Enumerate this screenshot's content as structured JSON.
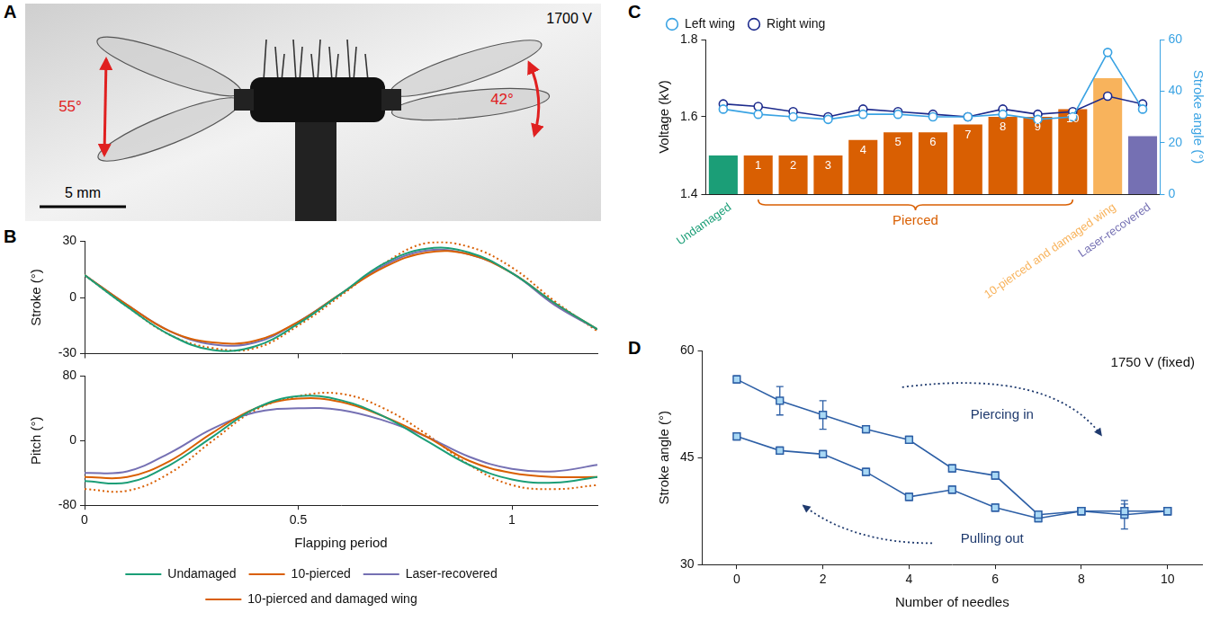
{
  "image_panel": {
    "panel": "A",
    "voltage": "1700 V",
    "angles": [
      "55°",
      "42°"
    ],
    "scale_bar": "5 mm"
  },
  "chart_data": [
    {
      "panel": "B",
      "type": "line",
      "ylabel": "Stroke (°)",
      "x": [
        0,
        0.1,
        0.2,
        0.3,
        0.4,
        0.5,
        0.6,
        0.7,
        0.8,
        0.9,
        1.0,
        1.1,
        1.2
      ],
      "xlim": [
        0,
        1.2
      ],
      "xticks": [
        0,
        0.5,
        1
      ],
      "ylim": [
        -30,
        30
      ],
      "yticks": [
        -30,
        0,
        30
      ],
      "grid": false,
      "tick_labels": "y",
      "series": [
        {
          "name": "Undamaged",
          "color": "#1b9e77",
          "line_style": "solid",
          "values": [
            12,
            -5,
            -20,
            -28,
            -26,
            -14,
            2,
            18,
            26,
            24,
            13,
            -3,
            -17
          ]
        },
        {
          "name": "10-pierced",
          "color": "#d95f02",
          "line_style": "solid",
          "values": [
            12,
            -4,
            -18,
            -24,
            -23,
            -13,
            2,
            16,
            24,
            23,
            13,
            -3,
            -17
          ]
        },
        {
          "name": "Laser-recovered",
          "color": "#7570b3",
          "line_style": "solid",
          "values": [
            12,
            -4,
            -18,
            -25,
            -24,
            -13,
            2,
            17,
            25,
            23,
            13,
            -4,
            -17
          ]
        },
        {
          "name": "10-pierced and damaged wing",
          "color": "#d95f02",
          "line_style": "dotted",
          "values": [
            12,
            -5,
            -20,
            -27,
            -27,
            -15,
            1,
            18,
            29,
            27,
            16,
            -2,
            -18
          ]
        }
      ]
    },
    {
      "type": "line",
      "xlabel": "Flapping period",
      "ylabel": "Pitch (°)",
      "x": [
        0,
        0.1,
        0.2,
        0.3,
        0.4,
        0.5,
        0.6,
        0.7,
        0.8,
        0.9,
        1.0,
        1.1,
        1.2
      ],
      "xlim": [
        0,
        1.2
      ],
      "xticks": [
        0,
        0.5,
        1
      ],
      "ylim": [
        -80,
        80
      ],
      "yticks": [
        -80,
        0,
        80
      ],
      "grid": false,
      "legend": "bottom",
      "series": [
        {
          "name": "Undamaged",
          "color": "#1b9e77",
          "line_style": "solid",
          "values": [
            -50,
            -52,
            -30,
            5,
            40,
            55,
            50,
            30,
            0,
            -30,
            -48,
            -52,
            -45
          ]
        },
        {
          "name": "10-pierced",
          "color": "#d95f02",
          "line_style": "solid",
          "values": [
            -45,
            -45,
            -25,
            10,
            40,
            52,
            48,
            30,
            5,
            -25,
            -40,
            -45,
            -45
          ]
        },
        {
          "name": "Laser-recovered",
          "color": "#7570b3",
          "line_style": "solid",
          "values": [
            -40,
            -38,
            -15,
            15,
            35,
            40,
            38,
            25,
            5,
            -20,
            -35,
            -38,
            -30
          ]
        },
        {
          "name": "10-pierced and damaged wing",
          "color": "#d95f02",
          "line_style": "dotted",
          "values": [
            -60,
            -62,
            -40,
            0,
            38,
            55,
            58,
            40,
            8,
            -30,
            -55,
            -60,
            -55
          ]
        }
      ]
    },
    {
      "panel": "C",
      "type": "bar",
      "categories": [
        "Undamaged",
        "1",
        "2",
        "3",
        "4",
        "5",
        "6",
        "7",
        "8",
        "9",
        "10",
        "10-pierced and damaged wing",
        "Laser-recovered"
      ],
      "values": [
        1.5,
        1.5,
        1.5,
        1.5,
        1.54,
        1.56,
        1.56,
        1.58,
        1.6,
        1.6,
        1.62,
        1.7,
        1.55
      ],
      "colors": [
        "#1b9e77",
        "#d95f02",
        "#d95f02",
        "#d95f02",
        "#d95f02",
        "#d95f02",
        "#d95f02",
        "#d95f02",
        "#d95f02",
        "#d95f02",
        "#d95f02",
        "#f8b35c",
        "#7570b3"
      ],
      "ylabel": "Voltage (kV)",
      "ylim": [
        1.4,
        1.8
      ],
      "yticks": [
        1.4,
        1.6,
        1.8
      ],
      "y2label": "Stroke angle (°)",
      "y2lim": [
        0,
        60
      ],
      "y2ticks": [
        0,
        20,
        40,
        60
      ],
      "grid": false,
      "legend": "top-left",
      "annotations": [
        {
          "text": "Pierced",
          "from": "1",
          "to": "10"
        }
      ],
      "series": [
        {
          "name": "Left wing",
          "type": "line",
          "axis": "y2",
          "color": "#3aa3e3",
          "marker": "circle",
          "values": [
            33,
            31,
            30,
            29,
            31,
            31,
            30,
            30,
            31,
            29,
            30,
            55,
            33
          ]
        },
        {
          "name": "Right wing",
          "type": "line",
          "axis": "y2",
          "color": "#1c2a8c",
          "marker": "circle",
          "values": [
            35,
            34,
            32,
            30,
            33,
            32,
            31,
            30,
            33,
            31,
            32,
            38,
            35
          ]
        }
      ]
    },
    {
      "panel": "D",
      "type": "line",
      "xlabel": "Number of needles",
      "ylabel": "Stroke angle (°)",
      "x": [
        0,
        1,
        2,
        3,
        4,
        5,
        6,
        7,
        8,
        9,
        10
      ],
      "xlim": [
        -0.8,
        10.8
      ],
      "xticks": [
        0,
        2,
        4,
        6,
        8,
        10
      ],
      "ylim": [
        30,
        60
      ],
      "yticks": [
        30,
        45,
        60
      ],
      "grid": false,
      "annotations": [
        {
          "text": "1750 V (fixed)"
        }
      ],
      "series": [
        {
          "name": "Piercing in",
          "color": "#2d5fa6",
          "marker": "square",
          "values": [
            56,
            53,
            51,
            49,
            47.5,
            43.5,
            42.5,
            37,
            37.5,
            37.5,
            37.5
          ],
          "errors": [
            0.5,
            2,
            2,
            0.5,
            0.5,
            0.5,
            0.5,
            0.5,
            0.5,
            1,
            0.5
          ]
        },
        {
          "name": "Pulling out",
          "color": "#2d5fa6",
          "marker": "square",
          "values": [
            48,
            46,
            45.5,
            43,
            39.5,
            40.5,
            38,
            36.5,
            37.5,
            37,
            37.5
          ],
          "errors": [
            0.5,
            0.5,
            0.5,
            0.5,
            0.5,
            0.5,
            0.5,
            0.5,
            0.5,
            2,
            0.5
          ]
        }
      ]
    }
  ]
}
